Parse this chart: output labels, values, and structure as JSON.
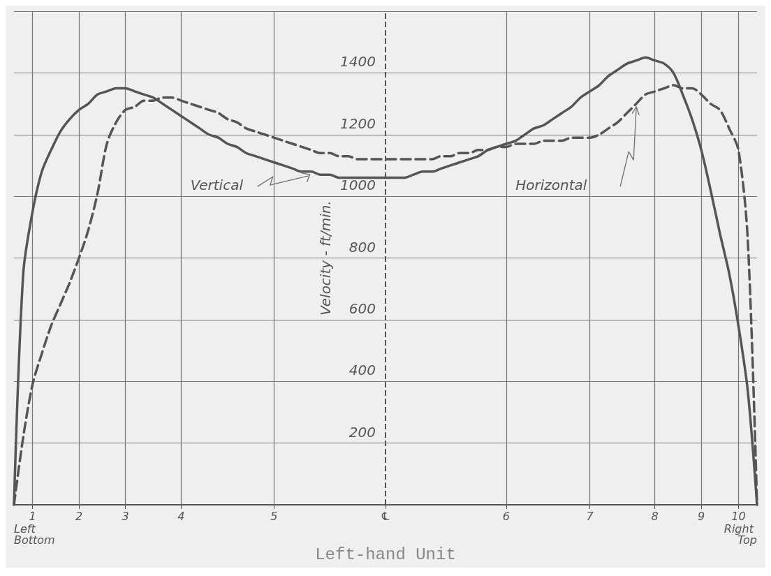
{
  "chart_data": {
    "type": "line",
    "title": "Left-hand Unit",
    "ylabel": "Velocity - ft/min.",
    "annotations": [
      "Left Bottom",
      "Right Top"
    ],
    "categories": [
      null,
      null,
      "1",
      null,
      null,
      null,
      null,
      "2",
      null,
      null,
      null,
      null,
      "3",
      null,
      null,
      null,
      null,
      null,
      "4",
      null,
      null,
      null,
      null,
      null,
      null,
      null,
      null,
      null,
      "5",
      null,
      null,
      null,
      null,
      null,
      null,
      null,
      null,
      null,
      null,
      null,
      "℄",
      null,
      null,
      null,
      null,
      null,
      null,
      null,
      null,
      null,
      null,
      null,
      null,
      "6",
      null,
      null,
      null,
      null,
      null,
      null,
      null,
      null,
      "7",
      null,
      null,
      null,
      null,
      null,
      null,
      "8",
      null,
      null,
      null,
      null,
      "9",
      null,
      null,
      null,
      "10",
      null,
      null
    ],
    "ylim": [
      0,
      1600
    ],
    "yticks": [
      {
        "value": 0,
        "label": null
      },
      200,
      400,
      600,
      800,
      1000,
      1200,
      1400,
      {
        "value": 1600,
        "label": null
      }
    ],
    "grid": true,
    "legend": false,
    "marker": "none",
    "ref_lines": [
      {
        "axis": "x",
        "value": "℄",
        "line_style": "dashed",
        "color": "#555555"
      }
    ],
    "series": [
      {
        "name": "Vertical",
        "color": "#555555",
        "line_style": "solid",
        "values": [
          0,
          750,
          950,
          1080,
          1150,
          1210,
          1250,
          1280,
          1300,
          1330,
          1340,
          1350,
          1350,
          1340,
          1330,
          1320,
          1300,
          1280,
          1260,
          1240,
          1220,
          1200,
          1190,
          1170,
          1160,
          1140,
          1130,
          1120,
          1110,
          1100,
          1090,
          1080,
          1080,
          1070,
          1070,
          1060,
          1060,
          1060,
          1060,
          1060,
          1060,
          1060,
          1060,
          1070,
          1080,
          1080,
          1090,
          1100,
          1110,
          1120,
          1130,
          1150,
          1160,
          1170,
          1180,
          1200,
          1220,
          1230,
          1250,
          1270,
          1290,
          1320,
          1340,
          1360,
          1390,
          1410,
          1430,
          1440,
          1450,
          1440,
          1430,
          1400,
          1330,
          1250,
          1150,
          1020,
          880,
          750,
          580,
          370,
          0
        ]
      },
      {
        "name": "Horizontal",
        "color": "#555555",
        "line_style": "dashed",
        "values": [
          0,
          220,
          390,
          490,
          580,
          650,
          720,
          800,
          890,
          1010,
          1170,
          1240,
          1280,
          1290,
          1310,
          1310,
          1320,
          1320,
          1310,
          1300,
          1290,
          1280,
          1270,
          1250,
          1240,
          1220,
          1210,
          1200,
          1190,
          1180,
          1170,
          1160,
          1150,
          1140,
          1140,
          1130,
          1130,
          1120,
          1120,
          1120,
          1120,
          1120,
          1120,
          1120,
          1120,
          1120,
          1130,
          1130,
          1140,
          1140,
          1150,
          1150,
          1160,
          1160,
          1170,
          1170,
          1170,
          1180,
          1180,
          1180,
          1190,
          1190,
          1190,
          1200,
          1220,
          1240,
          1270,
          1300,
          1330,
          1340,
          1350,
          1360,
          1350,
          1350,
          1330,
          1300,
          1280,
          1220,
          1150,
          860,
          0
        ]
      }
    ]
  }
}
